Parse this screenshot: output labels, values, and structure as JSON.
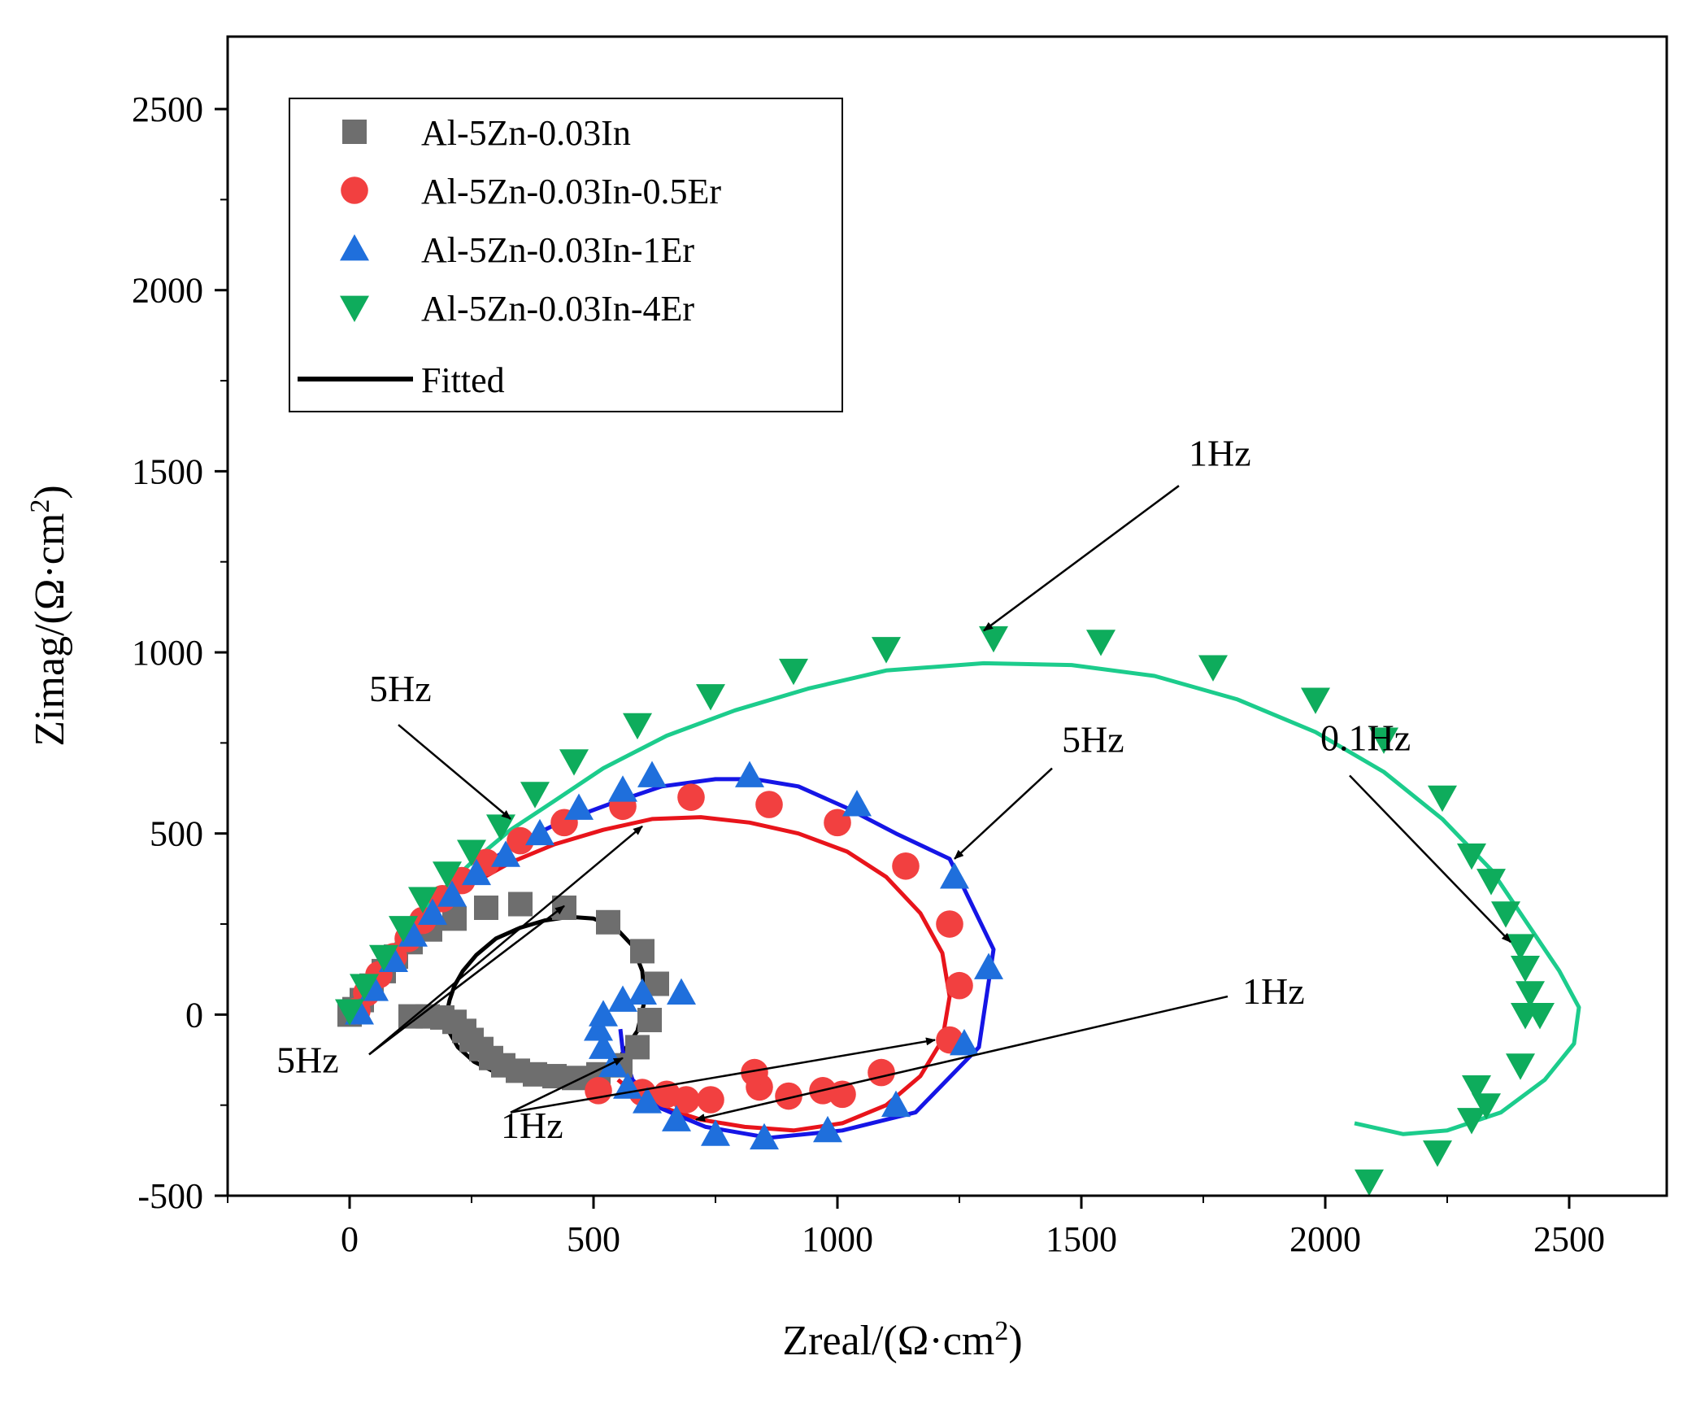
{
  "chart_data": {
    "type": "scatter",
    "title": "",
    "xlabel": {
      "prefix": "Zreal/(Ω·cm",
      "sup": "2",
      "suffix": ")"
    },
    "ylabel": {
      "prefix": "Zimag/(Ω·cm",
      "sup": "2",
      "suffix": ")"
    },
    "xlim": [
      -250,
      2700
    ],
    "ylim": [
      -500,
      2700
    ],
    "xticks": [
      "0",
      "500",
      "1000",
      "1500",
      "2000",
      "2500"
    ],
    "xtick_values": [
      0,
      500,
      1000,
      1500,
      2000,
      2500
    ],
    "yticks": [
      "-500",
      "0",
      "500",
      "1000",
      "1500",
      "2000",
      "2500"
    ],
    "ytick_values": [
      -500,
      0,
      500,
      1000,
      1500,
      2000,
      2500
    ],
    "legend": {
      "position": "top-left",
      "fitted_label": "Fitted",
      "fitted_color": "#000000"
    },
    "series": [
      {
        "name": "Al-5Zn-0.03In",
        "marker": "square",
        "color": "#6e6e6e",
        "fit_color": "#000000",
        "points": [
          [
            0,
            0
          ],
          [
            10,
            15
          ],
          [
            25,
            40
          ],
          [
            45,
            80
          ],
          [
            70,
            120
          ],
          [
            95,
            160
          ],
          [
            125,
            200
          ],
          [
            165,
            235
          ],
          [
            215,
            265
          ],
          [
            280,
            295
          ],
          [
            350,
            305
          ],
          [
            440,
            295
          ],
          [
            530,
            255
          ],
          [
            600,
            175
          ],
          [
            630,
            85
          ],
          [
            615,
            -15
          ],
          [
            590,
            -90
          ],
          [
            555,
            -140
          ],
          [
            510,
            -165
          ],
          [
            460,
            -175
          ],
          [
            420,
            -170
          ],
          [
            380,
            -165
          ],
          [
            345,
            -155
          ],
          [
            315,
            -140
          ],
          [
            290,
            -120
          ],
          [
            270,
            -95
          ],
          [
            250,
            -70
          ],
          [
            235,
            -45
          ],
          [
            215,
            -20
          ],
          [
            190,
            -8
          ],
          [
            160,
            -5
          ],
          [
            125,
            -5
          ]
        ],
        "fit": [
          [
            200,
            10
          ],
          [
            205,
            40
          ],
          [
            215,
            80
          ],
          [
            232,
            120
          ],
          [
            260,
            165
          ],
          [
            300,
            210
          ],
          [
            350,
            240
          ],
          [
            400,
            260
          ],
          [
            450,
            270
          ],
          [
            500,
            265
          ],
          [
            545,
            240
          ],
          [
            580,
            190
          ],
          [
            600,
            120
          ],
          [
            605,
            40
          ],
          [
            590,
            -45
          ],
          [
            555,
            -115
          ],
          [
            500,
            -165
          ],
          [
            430,
            -185
          ],
          [
            360,
            -180
          ],
          [
            300,
            -160
          ],
          [
            255,
            -130
          ],
          [
            222,
            -90
          ],
          [
            205,
            -50
          ],
          [
            198,
            -10
          ]
        ]
      },
      {
        "name": "Al-5Zn-0.03In-0.5Er",
        "marker": "circle",
        "color": "#f24040",
        "fit_color": "#e8141b",
        "points": [
          [
            15,
            10
          ],
          [
            35,
            60
          ],
          [
            60,
            110
          ],
          [
            90,
            160
          ],
          [
            120,
            210
          ],
          [
            150,
            260
          ],
          [
            190,
            320
          ],
          [
            230,
            370
          ],
          [
            280,
            420
          ],
          [
            350,
            480
          ],
          [
            440,
            530
          ],
          [
            560,
            575
          ],
          [
            700,
            600
          ],
          [
            860,
            580
          ],
          [
            1000,
            530
          ],
          [
            1140,
            410
          ],
          [
            1230,
            250
          ],
          [
            1250,
            80
          ],
          [
            1230,
            -70
          ],
          [
            1090,
            -160
          ],
          [
            1010,
            -220
          ],
          [
            970,
            -210
          ],
          [
            900,
            -225
          ],
          [
            840,
            -200
          ],
          [
            830,
            -160
          ],
          [
            740,
            -235
          ],
          [
            690,
            -235
          ],
          [
            650,
            -220
          ],
          [
            600,
            -215
          ],
          [
            510,
            -210
          ]
        ],
        "fit": [
          [
            5,
            0
          ],
          [
            30,
            70
          ],
          [
            70,
            150
          ],
          [
            120,
            230
          ],
          [
            180,
            300
          ],
          [
            250,
            360
          ],
          [
            330,
            420
          ],
          [
            420,
            470
          ],
          [
            520,
            510
          ],
          [
            620,
            540
          ],
          [
            720,
            545
          ],
          [
            820,
            530
          ],
          [
            920,
            500
          ],
          [
            1020,
            450
          ],
          [
            1100,
            380
          ],
          [
            1170,
            280
          ],
          [
            1215,
            170
          ],
          [
            1230,
            50
          ],
          [
            1215,
            -70
          ],
          [
            1170,
            -170
          ],
          [
            1100,
            -250
          ],
          [
            1010,
            -300
          ],
          [
            910,
            -320
          ],
          [
            810,
            -310
          ],
          [
            720,
            -290
          ],
          [
            650,
            -260
          ],
          [
            590,
            -225
          ],
          [
            550,
            -180
          ]
        ]
      },
      {
        "name": "Al-5Zn-0.03In-1Er",
        "marker": "triangle-up",
        "color": "#1f6fdc",
        "fit_color": "#1515e6",
        "points": [
          [
            20,
            5
          ],
          [
            50,
            70
          ],
          [
            90,
            150
          ],
          [
            130,
            220
          ],
          [
            170,
            280
          ],
          [
            210,
            330
          ],
          [
            260,
            390
          ],
          [
            320,
            440
          ],
          [
            390,
            500
          ],
          [
            470,
            570
          ],
          [
            560,
            620
          ],
          [
            620,
            660
          ],
          [
            820,
            660
          ],
          [
            1040,
            580
          ],
          [
            1240,
            380
          ],
          [
            1310,
            130
          ],
          [
            1260,
            -80
          ],
          [
            1120,
            -250
          ],
          [
            980,
            -320
          ],
          [
            850,
            -340
          ],
          [
            750,
            -330
          ],
          [
            670,
            -290
          ],
          [
            610,
            -240
          ],
          [
            570,
            -200
          ],
          [
            540,
            -140
          ],
          [
            520,
            -90
          ],
          [
            510,
            -40
          ],
          [
            520,
            0
          ],
          [
            560,
            40
          ],
          [
            600,
            60
          ],
          [
            680,
            60
          ]
        ],
        "fit": [
          [
            15,
            0
          ],
          [
            40,
            80
          ],
          [
            80,
            160
          ],
          [
            130,
            240
          ],
          [
            190,
            320
          ],
          [
            260,
            400
          ],
          [
            340,
            470
          ],
          [
            430,
            530
          ],
          [
            530,
            580
          ],
          [
            640,
            630
          ],
          [
            750,
            650
          ],
          [
            830,
            650
          ],
          [
            920,
            630
          ],
          [
            1020,
            570
          ],
          [
            1120,
            500
          ],
          [
            1230,
            430
          ],
          [
            1320,
            180
          ],
          [
            1290,
            -90
          ],
          [
            1160,
            -270
          ],
          [
            1010,
            -320
          ],
          [
            860,
            -340
          ],
          [
            730,
            -310
          ],
          [
            640,
            -260
          ],
          [
            580,
            -180
          ],
          [
            560,
            -100
          ],
          [
            555,
            -40
          ]
        ]
      },
      {
        "name": "Al-5Zn-0.03In-4Er",
        "marker": "triangle-down",
        "color": "#0eac5c",
        "fit_color": "#1ccc8c",
        "points": [
          [
            0,
            10
          ],
          [
            30,
            80
          ],
          [
            70,
            160
          ],
          [
            110,
            240
          ],
          [
            150,
            320
          ],
          [
            200,
            390
          ],
          [
            250,
            450
          ],
          [
            310,
            520
          ],
          [
            380,
            610
          ],
          [
            460,
            700
          ],
          [
            590,
            800
          ],
          [
            740,
            880
          ],
          [
            910,
            950
          ],
          [
            1100,
            1010
          ],
          [
            1320,
            1040
          ],
          [
            1540,
            1030
          ],
          [
            1770,
            960
          ],
          [
            1980,
            870
          ],
          [
            2120,
            760
          ],
          [
            2240,
            600
          ],
          [
            2300,
            440
          ],
          [
            2340,
            370
          ],
          [
            2370,
            280
          ],
          [
            2400,
            190
          ],
          [
            2410,
            130
          ],
          [
            2420,
            60
          ],
          [
            2440,
            0
          ],
          [
            2410,
            0
          ],
          [
            2400,
            -140
          ],
          [
            2310,
            -200
          ],
          [
            2330,
            -250
          ],
          [
            2300,
            -290
          ],
          [
            2230,
            -380
          ],
          [
            2090,
            -460
          ]
        ],
        "fit": [
          [
            0,
            0
          ],
          [
            30,
            70
          ],
          [
            70,
            150
          ],
          [
            120,
            240
          ],
          [
            180,
            330
          ],
          [
            250,
            420
          ],
          [
            330,
            510
          ],
          [
            420,
            590
          ],
          [
            520,
            680
          ],
          [
            650,
            770
          ],
          [
            790,
            840
          ],
          [
            940,
            900
          ],
          [
            1100,
            950
          ],
          [
            1300,
            970
          ],
          [
            1480,
            965
          ],
          [
            1650,
            935
          ],
          [
            1820,
            870
          ],
          [
            1980,
            780
          ],
          [
            2120,
            670
          ],
          [
            2240,
            540
          ],
          [
            2340,
            400
          ],
          [
            2420,
            240
          ],
          [
            2480,
            120
          ],
          [
            2520,
            20
          ],
          [
            2510,
            -80
          ],
          [
            2450,
            -180
          ],
          [
            2360,
            -270
          ],
          [
            2250,
            -320
          ],
          [
            2160,
            -330
          ],
          [
            2060,
            -300
          ]
        ]
      }
    ],
    "annotations": [
      {
        "text": "1Hz",
        "label_xy": [
          1720,
          1515
        ],
        "arrows": [
          [
            [
              1700,
              1460
            ],
            [
              1300,
              1060
            ]
          ]
        ]
      },
      {
        "text": "5Hz",
        "label_xy": [
          40,
          865
        ],
        "arrows": [
          [
            [
              100,
              800
            ],
            [
              330,
              540
            ]
          ]
        ]
      },
      {
        "text": "5Hz",
        "label_xy": [
          1460,
          725
        ],
        "arrows": [
          [
            [
              1440,
              680
            ],
            [
              1240,
              430
            ]
          ]
        ]
      },
      {
        "text": "0.1Hz",
        "label_xy": [
          1990,
          730
        ],
        "arrows": [
          [
            [
              2050,
              660
            ],
            [
              2380,
              200
            ]
          ]
        ]
      },
      {
        "text": "5Hz",
        "label_xy": [
          -150,
          -160
        ],
        "arrows": [
          [
            [
              40,
              -110
            ],
            [
              600,
              520
            ]
          ],
          [
            [
              40,
              -110
            ],
            [
              440,
              300
            ]
          ]
        ]
      },
      {
        "text": "1Hz",
        "label_xy": [
          1830,
          30
        ],
        "arrows": [
          [
            [
              330,
              -270
            ],
            [
              1200,
              -70
            ]
          ],
          [
            [
              1800,
              50
            ],
            [
              710,
              -290
            ]
          ],
          [
            [
              330,
              -270
            ],
            [
              560,
              -120
            ]
          ]
        ]
      },
      {
        "text": "1Hz",
        "label_xy": [
          310,
          -340
        ],
        "arrows": []
      }
    ]
  }
}
